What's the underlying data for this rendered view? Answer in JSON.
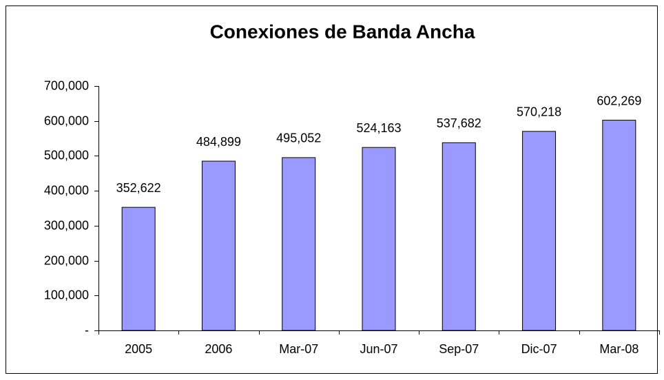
{
  "chart_data": {
    "type": "bar",
    "title": "Conexiones de Banda Ancha",
    "categories": [
      "2005",
      "2006",
      "Mar-07",
      "Jun-07",
      "Sep-07",
      "Dic-07",
      "Mar-08"
    ],
    "values": [
      352622,
      484899,
      495052,
      524163,
      537682,
      570218,
      602269
    ],
    "value_labels": [
      "352,622",
      "484,899",
      "495,052",
      "524,163",
      "537,682",
      "570,218",
      "602,269"
    ],
    "color": "#9999ff",
    "ylim": [
      0,
      700000
    ],
    "yticks": [
      {
        "value": 0,
        "label": "-"
      },
      {
        "value": 100000,
        "label": "100,000"
      },
      {
        "value": 200000,
        "label": "200,000"
      },
      {
        "value": 300000,
        "label": "300,000"
      },
      {
        "value": 400000,
        "label": "400,000"
      },
      {
        "value": 500000,
        "label": "500,000"
      },
      {
        "value": 600000,
        "label": "600,000"
      },
      {
        "value": 700000,
        "label": "700,000"
      }
    ],
    "grid": false
  }
}
